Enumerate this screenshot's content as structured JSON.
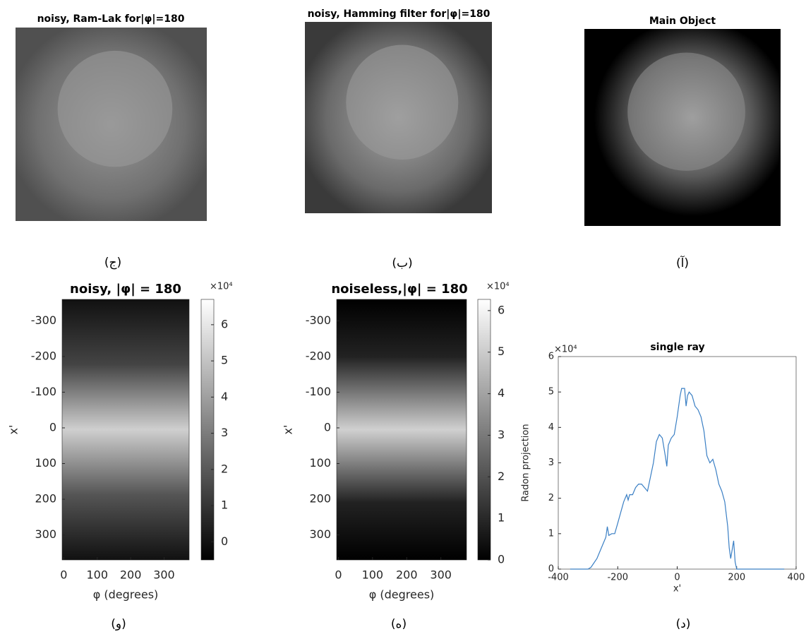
{
  "chart_data": [
    {
      "type": "image",
      "title": "noisy, Ram-Lak for|φ|=180",
      "caption": "(ج)",
      "style": "noisy"
    },
    {
      "type": "image",
      "title": "noisy, Hamming filter for|φ|=180",
      "caption": "(ب)",
      "style": "smooth"
    },
    {
      "type": "image",
      "title": "Main Object",
      "caption": "(آ)",
      "style": "clean"
    },
    {
      "type": "heatmap",
      "title": "noisy, |φ| = 180",
      "caption": "(و)",
      "xlabel": "φ (degrees)",
      "ylabel": "x'",
      "xlim": [
        -5,
        375
      ],
      "xticks": [
        0,
        100,
        200,
        300
      ],
      "ylim": [
        -360,
        370
      ],
      "yticks": [
        -300,
        -200,
        -100,
        0,
        100,
        200,
        300
      ],
      "clim": [
        -0.5,
        6.7
      ],
      "cticks": [
        0,
        1,
        2,
        3,
        4,
        5,
        6
      ],
      "colorbar_exponent": "×10⁴",
      "style": "noisy"
    },
    {
      "type": "heatmap",
      "title": "noiseless,|φ| = 180",
      "caption": "(ه)",
      "xlabel": "φ (degrees)",
      "ylabel": "x'",
      "xlim": [
        -5,
        375
      ],
      "xticks": [
        0,
        100,
        200,
        300
      ],
      "ylim": [
        -360,
        370
      ],
      "yticks": [
        -300,
        -200,
        -100,
        0,
        100,
        200,
        300
      ],
      "clim": [
        0,
        6.27
      ],
      "cticks": [
        0,
        1,
        2,
        3,
        4,
        5,
        6
      ],
      "colorbar_exponent": "×10⁴",
      "style": "clean"
    },
    {
      "type": "line",
      "title": "single ray",
      "caption": "(د)",
      "xlabel": "x'",
      "ylabel": "Radon projection",
      "xlim": [
        -400,
        400
      ],
      "xticks": [
        -400,
        -200,
        0,
        200,
        400
      ],
      "ylim": [
        0,
        6
      ],
      "yticks": [
        0,
        1,
        2,
        3,
        4,
        5,
        6
      ],
      "y_exponent": "×10⁴",
      "x": [
        -360,
        -300,
        -290,
        -270,
        -250,
        -240,
        -235,
        -230,
        -220,
        -210,
        -200,
        -190,
        -180,
        -170,
        -165,
        -160,
        -150,
        -140,
        -130,
        -120,
        -110,
        -100,
        -90,
        -80,
        -70,
        -60,
        -50,
        -40,
        -35,
        -30,
        -20,
        -10,
        0,
        10,
        15,
        25,
        30,
        35,
        40,
        50,
        60,
        70,
        80,
        90,
        100,
        110,
        120,
        130,
        140,
        150,
        160,
        170,
        175,
        180,
        190,
        195,
        200,
        250,
        300,
        360
      ],
      "series": [
        {
          "color": "#3a7fc4",
          "values": [
            0,
            0,
            0.05,
            0.3,
            0.7,
            0.9,
            1.2,
            0.95,
            1.0,
            1.0,
            1.3,
            1.6,
            1.9,
            2.1,
            1.95,
            2.1,
            2.1,
            2.3,
            2.4,
            2.4,
            2.3,
            2.2,
            2.6,
            3.0,
            3.6,
            3.8,
            3.7,
            3.2,
            2.9,
            3.5,
            3.7,
            3.8,
            4.3,
            4.9,
            5.1,
            5.1,
            4.6,
            4.9,
            5.0,
            4.9,
            4.6,
            4.5,
            4.3,
            3.9,
            3.2,
            3.0,
            3.1,
            2.8,
            2.4,
            2.2,
            1.9,
            1.2,
            0.6,
            0.3,
            0.8,
            0.2,
            0,
            0,
            0,
            0
          ]
        }
      ]
    }
  ]
}
